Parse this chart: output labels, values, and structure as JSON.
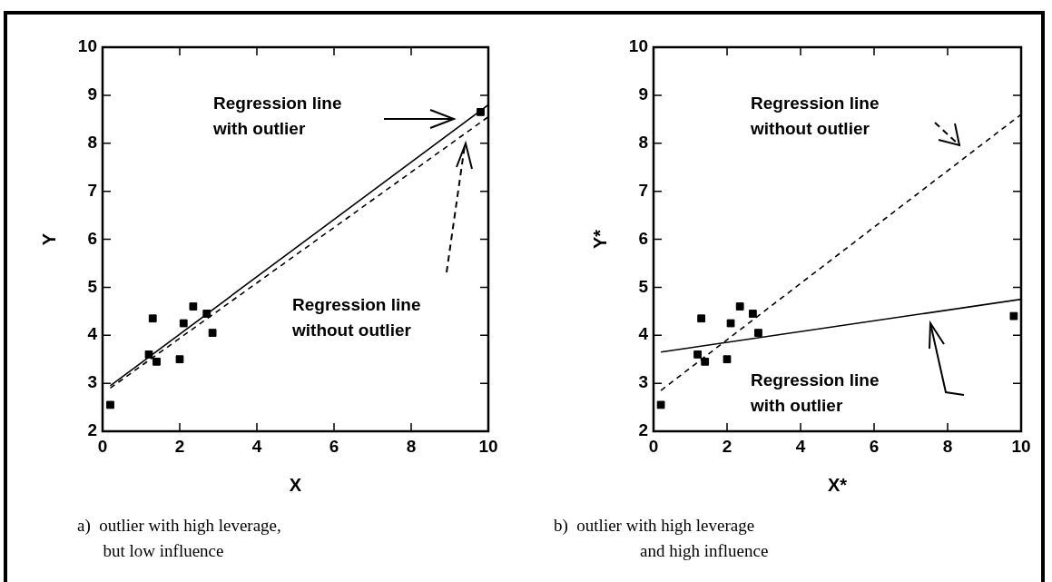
{
  "chart_data": [
    {
      "type": "scatter",
      "xlabel": "X",
      "ylabel": "Y",
      "xlim": [
        0,
        10
      ],
      "ylim": [
        2,
        10
      ],
      "xticks": [
        0,
        2,
        4,
        6,
        8,
        10
      ],
      "yticks": [
        2,
        3,
        4,
        5,
        6,
        7,
        8,
        9,
        10
      ],
      "grid": false,
      "legend": false,
      "marker": "square",
      "series": [
        {
          "type": "scatter",
          "color": "#000000",
          "x": [
            0.2,
            1.2,
            1.3,
            1.4,
            2.0,
            2.1,
            2.35,
            2.7,
            2.85,
            9.8
          ],
          "values": [
            2.55,
            3.6,
            4.35,
            3.45,
            3.5,
            4.25,
            4.6,
            4.45,
            4.05,
            8.65
          ]
        },
        {
          "type": "line",
          "color": "#000000",
          "marker": "none",
          "line_style": "solid",
          "x": [
            0.2,
            10
          ],
          "values": [
            2.95,
            8.8
          ]
        },
        {
          "type": "line",
          "color": "#000000",
          "marker": "none",
          "line_style": "dashed",
          "x": [
            0.2,
            10
          ],
          "values": [
            2.9,
            8.55
          ]
        }
      ],
      "annotations": [
        "Regression line\nwith outlier",
        "Regression line\nwithout outlier",
        "a)  outlier with high leverage,\n      but low influence"
      ]
    },
    {
      "type": "scatter",
      "xlabel": "X*",
      "ylabel": "Y*",
      "xlim": [
        0,
        10
      ],
      "ylim": [
        2,
        10
      ],
      "xticks": [
        0,
        2,
        4,
        6,
        8,
        10
      ],
      "yticks": [
        2,
        3,
        4,
        5,
        6,
        7,
        8,
        9,
        10
      ],
      "grid": false,
      "legend": false,
      "marker": "square",
      "series": [
        {
          "type": "scatter",
          "color": "#000000",
          "x": [
            0.2,
            1.2,
            1.3,
            1.4,
            2.0,
            2.1,
            2.35,
            2.7,
            2.85,
            9.8
          ],
          "values": [
            2.55,
            3.6,
            4.35,
            3.45,
            3.5,
            4.25,
            4.6,
            4.45,
            4.05,
            4.4
          ]
        },
        {
          "type": "line",
          "color": "#000000",
          "marker": "none",
          "line_style": "solid",
          "x": [
            0.2,
            10
          ],
          "values": [
            3.65,
            4.75
          ]
        },
        {
          "type": "line",
          "color": "#000000",
          "marker": "none",
          "line_style": "dashed",
          "x": [
            0.2,
            10
          ],
          "values": [
            2.85,
            8.6
          ]
        }
      ],
      "annotations": [
        "Regression line\nwithout outlier",
        "Regression line\nwith outlier",
        "b)  outlier with high leverage\n                    and high influence"
      ]
    }
  ]
}
